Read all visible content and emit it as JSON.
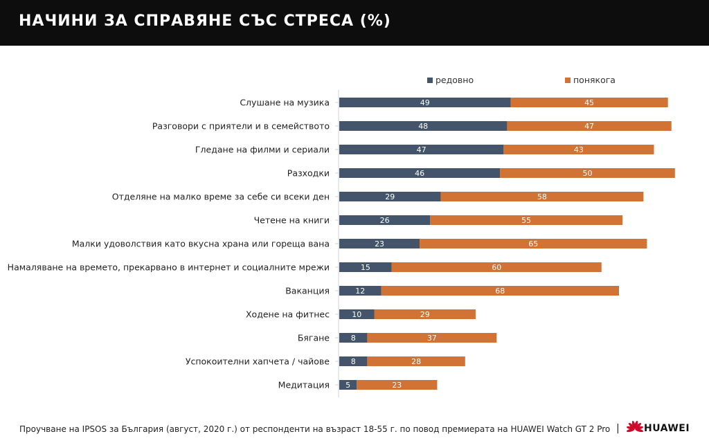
{
  "header": {
    "title": "НАЧИНИ ЗА СПРАВЯНЕ СЪС СТРЕСА (%)"
  },
  "chart_data": {
    "type": "bar",
    "orientation": "horizontal",
    "stacked": true,
    "title": "НАЧИНИ ЗА СПРАВЯНЕ СЪС СТРЕСА (%)",
    "xlabel": "",
    "ylabel": "",
    "xlim": [
      0,
      100
    ],
    "grid": false,
    "legend_position": "top-right",
    "categories": [
      "Слушане на музика",
      "Разговори с приятели и в семейството",
      "Гледане на филми и сериали",
      "Разходки",
      "Отделяне на малко време за себе си всеки ден",
      "Четене на книги",
      "Малки удоволствия като вкусна храна или гореща вана",
      "Намаляване на времето, прекарвано в интернет и социалните мрежи",
      "Ваканция",
      "Ходене на фитнес",
      "Бягане",
      "Успокоителни хапчета / чайове",
      "Медитация"
    ],
    "series": [
      {
        "name": "редовно",
        "color": "#44546a",
        "values": [
          49,
          48,
          47,
          46,
          29,
          26,
          23,
          15,
          12,
          10,
          8,
          8,
          5
        ]
      },
      {
        "name": "понякога",
        "color": "#d07335",
        "values": [
          45,
          47,
          43,
          50,
          58,
          55,
          65,
          60,
          68,
          29,
          37,
          28,
          23
        ]
      }
    ]
  },
  "footer": {
    "text": "Проучване на IPSOS за България (август, 2020 г.) от респонденти на възраст 18-55 г. по повод премиерата на HUAWEI Watch GT 2 Pro",
    "separator": "|",
    "brand": "HUAWEI",
    "brand_color": "#cf0a2c"
  }
}
